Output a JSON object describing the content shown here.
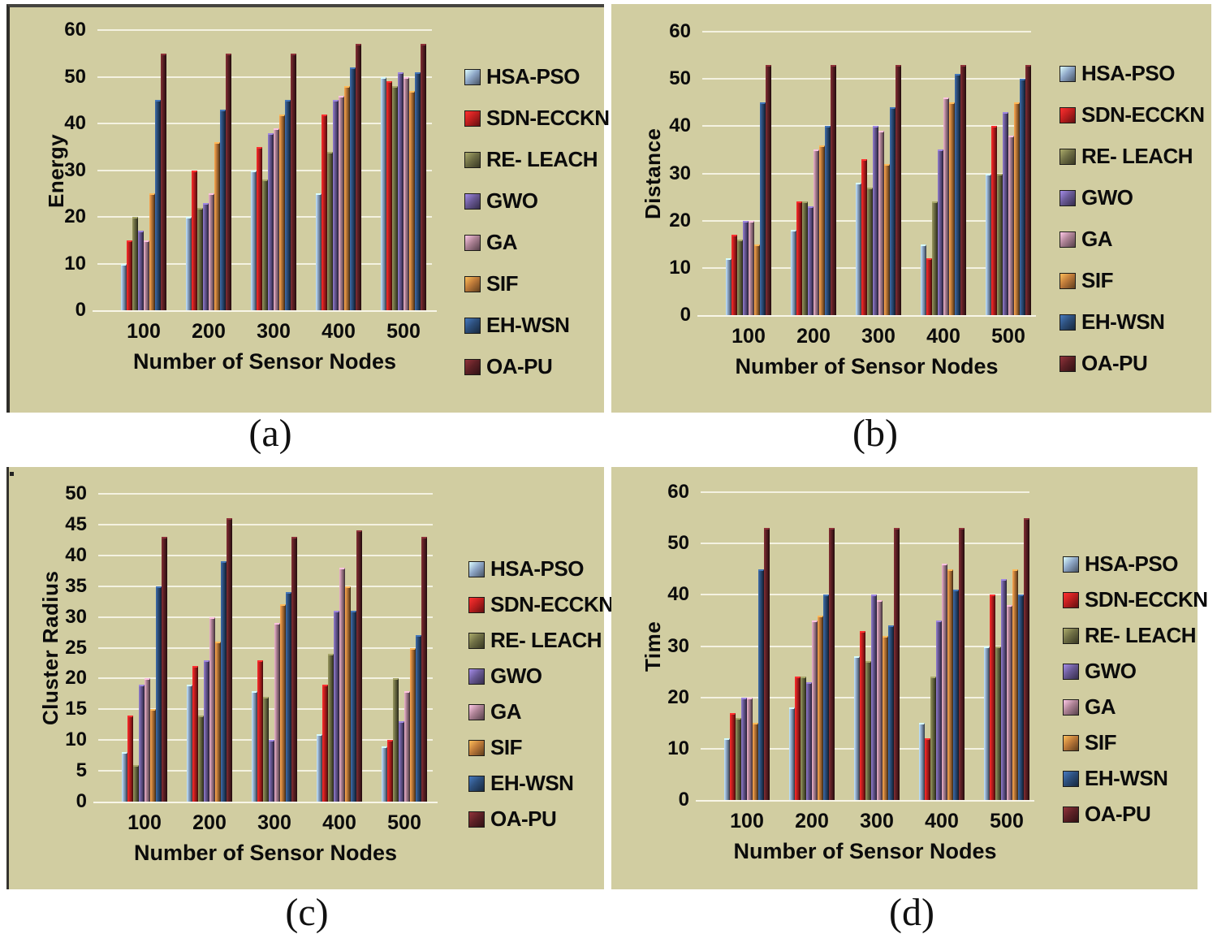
{
  "figure": {
    "captions": {
      "a": "(a)",
      "b": "(b)",
      "c": "(c)",
      "d": "(d)"
    },
    "background_color": "#d1cda1",
    "gridline_color": "#f5f2e2"
  },
  "chart_data": [
    {
      "id": "a",
      "type": "bar",
      "caption": "(a)",
      "title": "",
      "ylabel": "Energy",
      "xlabel": "Number of Sensor Nodes",
      "ylim": [
        0,
        60
      ],
      "ystep": 10,
      "yticks": [
        "0",
        "10",
        "20",
        "30",
        "40",
        "50",
        "60"
      ],
      "grid": true,
      "legend_position": "right",
      "categories": [
        "100",
        "200",
        "300",
        "400",
        "500"
      ],
      "series": [
        {
          "name": "HSA-PSO",
          "color": "#8fa8c8",
          "values": [
            10,
            20,
            30,
            25,
            50
          ]
        },
        {
          "name": "SDN-ECCKN",
          "color": "#c21f1f",
          "values": [
            15,
            30,
            35,
            42,
            49
          ]
        },
        {
          "name": "RE- LEACH",
          "color": "#6f6f45",
          "values": [
            20,
            22,
            28,
            34,
            48
          ]
        },
        {
          "name": "GWO",
          "color": "#6a5a96",
          "values": [
            17,
            23,
            38,
            45,
            51
          ]
        },
        {
          "name": "GA",
          "color": "#ad8295",
          "values": [
            15,
            25,
            39,
            46,
            50
          ]
        },
        {
          "name": "SIF",
          "color": "#bf7b3a",
          "values": [
            25,
            36,
            42,
            48,
            47
          ]
        },
        {
          "name": "EH-WSN",
          "color": "#2d4f7c",
          "values": [
            45,
            43,
            45,
            52,
            51
          ]
        },
        {
          "name": "OA-PU",
          "color": "#5f2126",
          "values": [
            55,
            55,
            55,
            57,
            57
          ]
        }
      ]
    },
    {
      "id": "b",
      "type": "bar",
      "caption": "(b)",
      "title": "",
      "ylabel": "Distance",
      "xlabel": "Number of Sensor Nodes",
      "ylim": [
        0,
        60
      ],
      "ystep": 10,
      "yticks": [
        "0",
        "10",
        "20",
        "30",
        "40",
        "50",
        "60"
      ],
      "grid": true,
      "legend_position": "right",
      "categories": [
        "100",
        "200",
        "300",
        "400",
        "500"
      ],
      "series": [
        {
          "name": "HSA-PSO",
          "color": "#8fa8c8",
          "values": [
            12,
            18,
            28,
            15,
            30
          ]
        },
        {
          "name": "SDN-ECCKN",
          "color": "#c21f1f",
          "values": [
            17,
            24,
            33,
            12,
            40
          ]
        },
        {
          "name": "RE- LEACH",
          "color": "#6f6f45",
          "values": [
            16,
            24,
            27,
            24,
            30
          ]
        },
        {
          "name": "GWO",
          "color": "#6a5a96",
          "values": [
            20,
            23,
            40,
            35,
            43
          ]
        },
        {
          "name": "GA",
          "color": "#ad8295",
          "values": [
            20,
            35,
            39,
            46,
            38
          ]
        },
        {
          "name": "SIF",
          "color": "#bf7b3a",
          "values": [
            15,
            36,
            32,
            45,
            45
          ]
        },
        {
          "name": "EH-WSN",
          "color": "#2d4f7c",
          "values": [
            45,
            40,
            44,
            51,
            50
          ]
        },
        {
          "name": "OA-PU",
          "color": "#5f2126",
          "values": [
            53,
            53,
            53,
            53,
            53
          ]
        }
      ]
    },
    {
      "id": "c",
      "type": "bar",
      "caption": "(c)",
      "title": "",
      "ylabel": "Cluster Radius",
      "xlabel": "Number of Sensor Nodes",
      "ylim": [
        0,
        50
      ],
      "ystep": 5,
      "yticks": [
        "0",
        "5",
        "10",
        "15",
        "20",
        "25",
        "30",
        "35",
        "40",
        "45",
        "50"
      ],
      "grid": true,
      "legend_position": "right",
      "categories": [
        "100",
        "200",
        "300",
        "400",
        "500"
      ],
      "series": [
        {
          "name": "HSA-PSO",
          "color": "#8fa8c8",
          "values": [
            8,
            19,
            18,
            11,
            9
          ]
        },
        {
          "name": "SDN-ECCKN",
          "color": "#c21f1f",
          "values": [
            14,
            22,
            23,
            19,
            10
          ]
        },
        {
          "name": "RE- LEACH",
          "color": "#6f6f45",
          "values": [
            6,
            14,
            17,
            24,
            20
          ]
        },
        {
          "name": "GWO",
          "color": "#6a5a96",
          "values": [
            19,
            23,
            10,
            31,
            13
          ]
        },
        {
          "name": "GA",
          "color": "#ad8295",
          "values": [
            20,
            30,
            29,
            38,
            18
          ]
        },
        {
          "name": "SIF",
          "color": "#bf7b3a",
          "values": [
            15,
            26,
            32,
            35,
            25
          ]
        },
        {
          "name": "EH-WSN",
          "color": "#2d4f7c",
          "values": [
            35,
            39,
            34,
            31,
            27
          ]
        },
        {
          "name": "OA-PU",
          "color": "#5f2126",
          "values": [
            43,
            46,
            43,
            44,
            43
          ]
        }
      ]
    },
    {
      "id": "d",
      "type": "bar",
      "caption": "(d)",
      "title": "",
      "ylabel": "Time",
      "xlabel": "Number of Sensor Nodes",
      "ylim": [
        0,
        60
      ],
      "ystep": 10,
      "yticks": [
        "0",
        "10",
        "20",
        "30",
        "40",
        "50",
        "60"
      ],
      "grid": true,
      "legend_position": "right",
      "categories": [
        "100",
        "200",
        "300",
        "400",
        "500"
      ],
      "series": [
        {
          "name": "HSA-PSO",
          "color": "#8fa8c8",
          "values": [
            12,
            18,
            28,
            15,
            30
          ]
        },
        {
          "name": "SDN-ECCKN",
          "color": "#c21f1f",
          "values": [
            17,
            24,
            33,
            12,
            40
          ]
        },
        {
          "name": "RE- LEACH",
          "color": "#6f6f45",
          "values": [
            16,
            24,
            27,
            24,
            30
          ]
        },
        {
          "name": "GWO",
          "color": "#6a5a96",
          "values": [
            20,
            23,
            40,
            35,
            43
          ]
        },
        {
          "name": "GA",
          "color": "#ad8295",
          "values": [
            20,
            35,
            39,
            46,
            38
          ]
        },
        {
          "name": "SIF",
          "color": "#bf7b3a",
          "values": [
            15,
            36,
            32,
            45,
            45
          ]
        },
        {
          "name": "EH-WSN",
          "color": "#2d4f7c",
          "values": [
            45,
            40,
            34,
            41,
            40
          ]
        },
        {
          "name": "OA-PU",
          "color": "#5f2126",
          "values": [
            53,
            53,
            53,
            53,
            55
          ]
        }
      ]
    }
  ]
}
